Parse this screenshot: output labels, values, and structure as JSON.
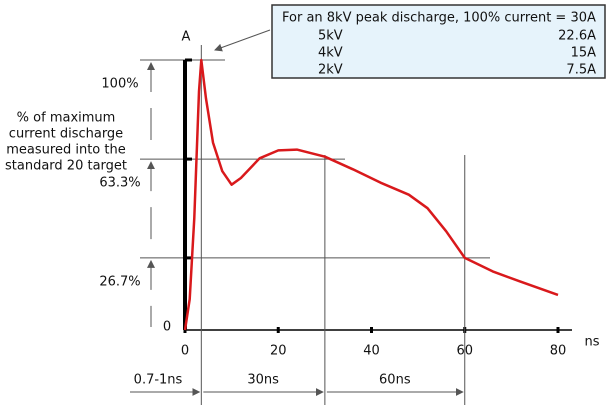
{
  "chart_data": {
    "type": "line",
    "y_axis_label": "A",
    "x_axis_label": "ns",
    "y_description": [
      "% of maximum",
      "current discharge",
      "measured into the",
      "standard 20 target"
    ],
    "x": [
      0,
      1,
      2,
      3,
      3.5,
      4.5,
      6,
      8,
      10,
      12,
      16,
      20,
      24,
      30,
      36,
      42,
      48,
      52,
      56,
      60,
      66,
      72,
      80
    ],
    "series": [
      {
        "color": "#d9191c",
        "values": [
          0,
          11.4,
          41.5,
          88.4,
          100,
          85.7,
          69.4,
          58.8,
          53.8,
          56.3,
          63.6,
          66.5,
          66.8,
          64.2,
          59.5,
          54.5,
          50.1,
          45.1,
          36.6,
          26.7,
          21.7,
          17.9,
          13.0
        ]
      }
    ],
    "xlim": [
      0,
      80
    ],
    "xticks": [
      0,
      20,
      40,
      60,
      80
    ],
    "ylim": [
      0,
      100
    ],
    "yticks": [
      0,
      {
        "value": 26.7,
        "label": "26.7%"
      },
      {
        "value": 63.3,
        "label": "63.3%"
      },
      {
        "value": 100,
        "label": "100%"
      }
    ],
    "time_labels": [
      "0.7-1ns",
      "30ns",
      "60ns"
    ],
    "info_box": {
      "title": "For an 8kV peak discharge, 100% current = 30A",
      "rows": [
        [
          "5kV",
          "22.6A"
        ],
        [
          "4kV",
          "15A"
        ],
        [
          "2kV",
          "7.5A"
        ]
      ]
    }
  }
}
